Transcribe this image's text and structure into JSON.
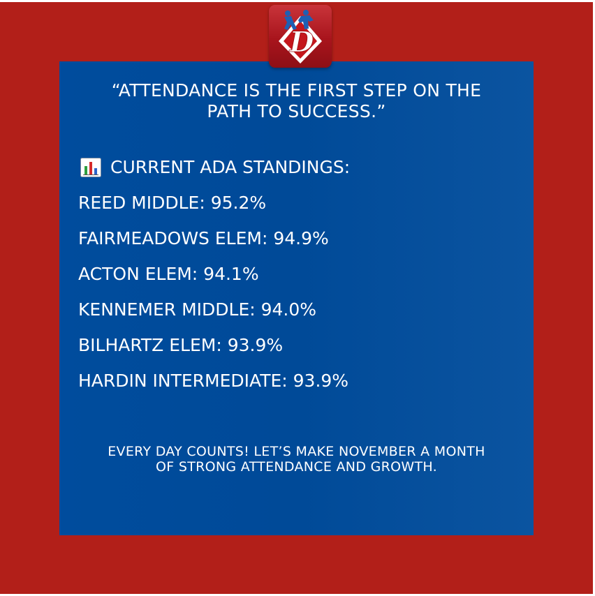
{
  "colors": {
    "frame": "#b21f19",
    "panel": "#004c9d",
    "text": "#ffffff"
  },
  "logo": {
    "letter": "D",
    "icon": "district-logo-icon"
  },
  "quote": {
    "line1": "“ATTENDANCE IS THE FIRST STEP ON THE",
    "line2": "PATH TO SUCCESS.”"
  },
  "standings": {
    "icon": "bar-chart-icon",
    "heading": "CURRENT ADA STANDINGS:",
    "schools": [
      {
        "text": "REED MIDDLE: 95.2%"
      },
      {
        "text": "FAIRMEADOWS ELEM: 94.9%"
      },
      {
        "text": "ACTON ELEM: 94.1%"
      },
      {
        "text": "KENNEMER MIDDLE: 94.0%"
      },
      {
        "text": "BILHARTZ ELEM: 93.9%"
      },
      {
        "text": "HARDIN INTERMEDIATE: 93.9%"
      }
    ]
  },
  "footer": {
    "line1": "EVERY DAY COUNTS! LET’S MAKE NOVEMBER A MONTH",
    "line2": "OF STRONG ATTENDANCE AND GROWTH."
  }
}
